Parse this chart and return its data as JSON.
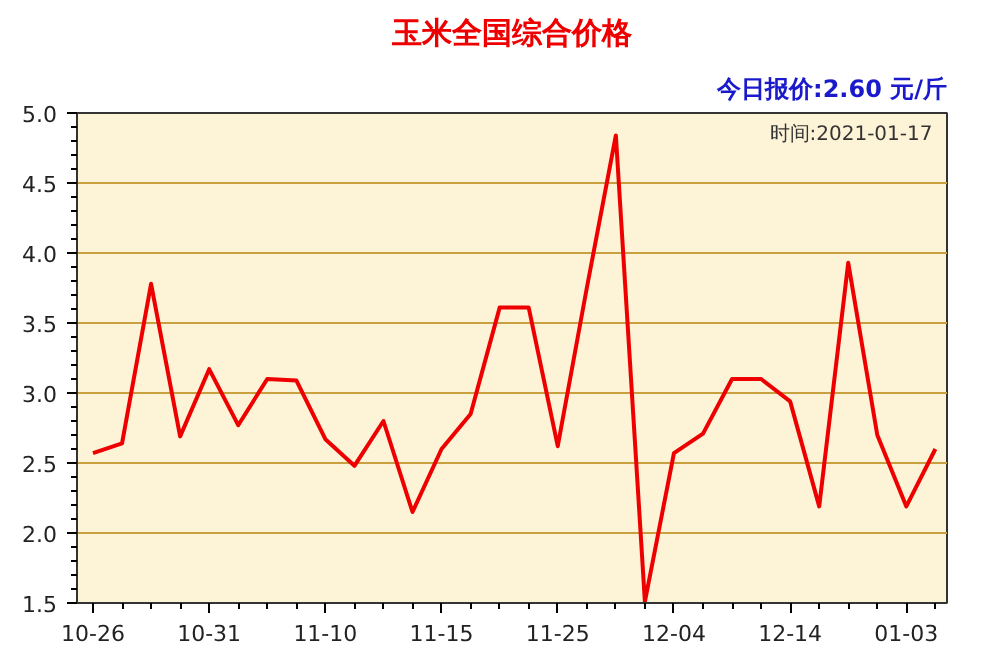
{
  "chart_data": {
    "type": "line",
    "title": "玉米全国综合价格",
    "subtitle": "今日报价:2.60 元/斤",
    "annotations": [
      "时间:2021-01-17"
    ],
    "categories": [
      "10-26",
      null,
      null,
      null,
      "10-31",
      null,
      null,
      null,
      "11-10",
      null,
      null,
      null,
      "11-15",
      null,
      null,
      null,
      "11-25",
      null,
      null,
      null,
      "12-04",
      null,
      null,
      null,
      "12-14",
      null,
      null,
      null,
      "01-03",
      null
    ],
    "series": [
      {
        "color": "#ee0000",
        "values": [
          2.57,
          2.64,
          3.78,
          2.69,
          3.17,
          2.77,
          3.1,
          3.09,
          2.67,
          2.48,
          2.8,
          2.15,
          2.6,
          2.85,
          3.61,
          3.61,
          2.62,
          3.75,
          4.84,
          1.51,
          2.57,
          2.71,
          3.1,
          3.1,
          2.94,
          2.19,
          3.93,
          2.7,
          2.19,
          2.6
        ]
      }
    ],
    "ylim": [
      1.5,
      5.0
    ],
    "yticks": [
      {
        "value": 1.5,
        "label": "1.5"
      },
      {
        "value": 2.0,
        "label": "2.0"
      },
      {
        "value": 2.5,
        "label": "2.5"
      },
      {
        "value": 3.0,
        "label": "3.0"
      },
      {
        "value": 3.5,
        "label": "3.5"
      },
      {
        "value": 4.0,
        "label": "4.0"
      },
      {
        "value": 4.5,
        "label": "4.5"
      },
      {
        "value": 5.0,
        "label": "5.0"
      }
    ],
    "grid": "y",
    "line_style": "solid"
  }
}
